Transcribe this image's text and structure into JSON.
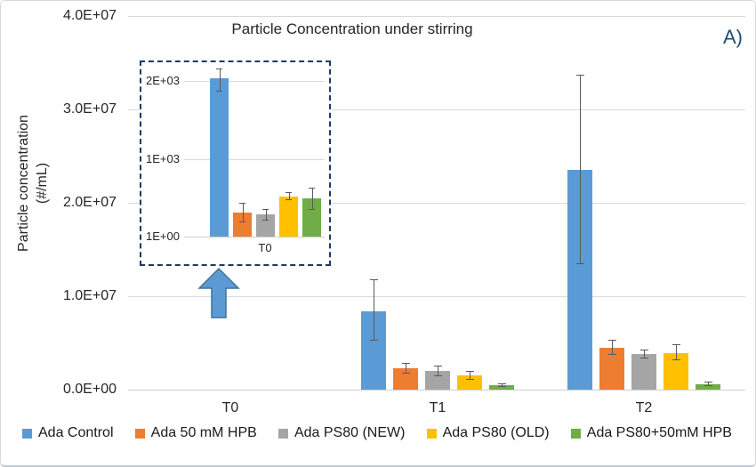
{
  "annotation": {
    "label": "A)",
    "color": "#1F4E79"
  },
  "chart_data": {
    "type": "bar",
    "title": "Particle Concentration under stirring",
    "ylabel": "Particle concentration (#/mL)",
    "ylabel_lines": [
      "Particle concentration",
      "(#/mL)"
    ],
    "xlabel": "",
    "categories": [
      "T0",
      "T1",
      "T2"
    ],
    "y_ticks": [
      "4.0E+07",
      "3.0E+07",
      "2.0E+07",
      "1.0E+07",
      "0.0E+00"
    ],
    "y_tick_values": [
      40000000,
      30000000,
      20000000,
      10000000,
      0
    ],
    "ylim": [
      0,
      40000000
    ],
    "grid": true,
    "grid_color": "#D9D9D9",
    "error_bar_color": "#595959",
    "legend_position": "bottom",
    "series": [
      {
        "name": "Ada Control",
        "color": "#5B9BD5",
        "values": [
          2030,
          8400000,
          23500000
        ],
        "err_low": [
          1880,
          5300000,
          13500000
        ],
        "err_high": [
          2160,
          11800000,
          33700000
        ]
      },
      {
        "name": "Ada 50 mM HPB",
        "color": "#ED7D31",
        "values": [
          310,
          2300000,
          4500000
        ],
        "err_low": [
          190,
          1800000,
          3800000
        ],
        "err_high": [
          440,
          2900000,
          5300000
        ]
      },
      {
        "name": "Ada PS80 (NEW)",
        "color": "#A5A5A5",
        "values": [
          285,
          2000000,
          3850000
        ],
        "err_low": [
          220,
          1500000,
          3400000
        ],
        "err_high": [
          350,
          2600000,
          4300000
        ]
      },
      {
        "name": "Ada PS80 (OLD)",
        "color": "#FFC000",
        "values": [
          520,
          1500000,
          3900000
        ],
        "err_low": [
          480,
          1100000,
          3200000
        ],
        "err_high": [
          570,
          2000000,
          4900000
        ]
      },
      {
        "name": "Ada PS80+50mM HPB",
        "color": "#70AD47",
        "values": [
          490,
          500000,
          580000
        ],
        "err_low": [
          350,
          400000,
          450000
        ],
        "err_high": [
          630,
          650000,
          850000
        ]
      }
    ],
    "inset": {
      "description": "magnified view of T0 group",
      "category": "T0",
      "y_ticks": [
        "2E+03",
        "1E+03",
        "1E+00"
      ],
      "y_tick_values": [
        2000,
        1000,
        0
      ],
      "border_color": "#1F3864",
      "arrow_color": "#5B9BD5"
    }
  }
}
